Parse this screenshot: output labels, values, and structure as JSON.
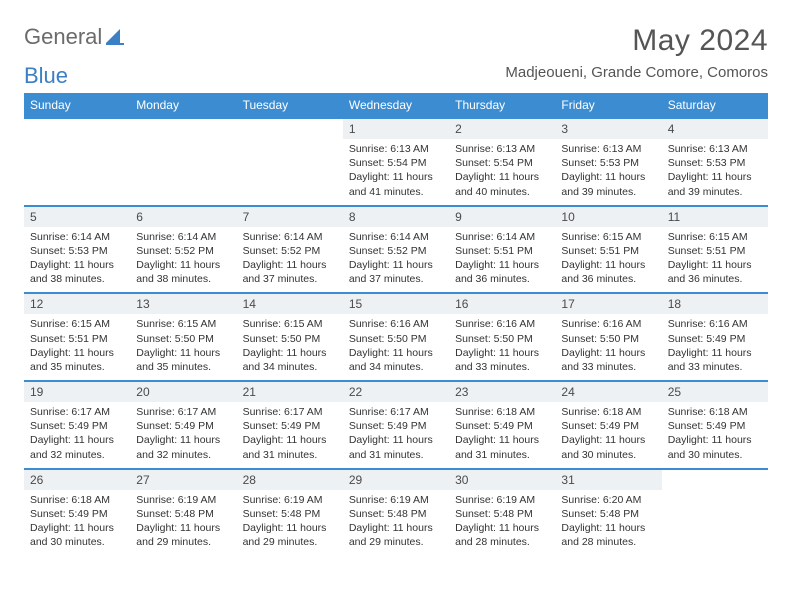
{
  "logo": {
    "word1": "General",
    "word2": "Blue"
  },
  "title": "May 2024",
  "location": "Madjeoueni, Grande Comore, Comoros",
  "colors": {
    "header_bg": "#3c8cd2",
    "header_text": "#ffffff",
    "row_border": "#3c8cd2",
    "daynum_bg": "#eef1f3",
    "logo_gray": "#6b6b6b",
    "logo_blue": "#3b7fc4",
    "text": "#333333"
  },
  "day_headers": [
    "Sunday",
    "Monday",
    "Tuesday",
    "Wednesday",
    "Thursday",
    "Friday",
    "Saturday"
  ],
  "weeks": [
    [
      null,
      null,
      null,
      {
        "n": "1",
        "sr": "6:13 AM",
        "ss": "5:54 PM",
        "dl": "11 hours and 41 minutes."
      },
      {
        "n": "2",
        "sr": "6:13 AM",
        "ss": "5:54 PM",
        "dl": "11 hours and 40 minutes."
      },
      {
        "n": "3",
        "sr": "6:13 AM",
        "ss": "5:53 PM",
        "dl": "11 hours and 39 minutes."
      },
      {
        "n": "4",
        "sr": "6:13 AM",
        "ss": "5:53 PM",
        "dl": "11 hours and 39 minutes."
      }
    ],
    [
      {
        "n": "5",
        "sr": "6:14 AM",
        "ss": "5:53 PM",
        "dl": "11 hours and 38 minutes."
      },
      {
        "n": "6",
        "sr": "6:14 AM",
        "ss": "5:52 PM",
        "dl": "11 hours and 38 minutes."
      },
      {
        "n": "7",
        "sr": "6:14 AM",
        "ss": "5:52 PM",
        "dl": "11 hours and 37 minutes."
      },
      {
        "n": "8",
        "sr": "6:14 AM",
        "ss": "5:52 PM",
        "dl": "11 hours and 37 minutes."
      },
      {
        "n": "9",
        "sr": "6:14 AM",
        "ss": "5:51 PM",
        "dl": "11 hours and 36 minutes."
      },
      {
        "n": "10",
        "sr": "6:15 AM",
        "ss": "5:51 PM",
        "dl": "11 hours and 36 minutes."
      },
      {
        "n": "11",
        "sr": "6:15 AM",
        "ss": "5:51 PM",
        "dl": "11 hours and 36 minutes."
      }
    ],
    [
      {
        "n": "12",
        "sr": "6:15 AM",
        "ss": "5:51 PM",
        "dl": "11 hours and 35 minutes."
      },
      {
        "n": "13",
        "sr": "6:15 AM",
        "ss": "5:50 PM",
        "dl": "11 hours and 35 minutes."
      },
      {
        "n": "14",
        "sr": "6:15 AM",
        "ss": "5:50 PM",
        "dl": "11 hours and 34 minutes."
      },
      {
        "n": "15",
        "sr": "6:16 AM",
        "ss": "5:50 PM",
        "dl": "11 hours and 34 minutes."
      },
      {
        "n": "16",
        "sr": "6:16 AM",
        "ss": "5:50 PM",
        "dl": "11 hours and 33 minutes."
      },
      {
        "n": "17",
        "sr": "6:16 AM",
        "ss": "5:50 PM",
        "dl": "11 hours and 33 minutes."
      },
      {
        "n": "18",
        "sr": "6:16 AM",
        "ss": "5:49 PM",
        "dl": "11 hours and 33 minutes."
      }
    ],
    [
      {
        "n": "19",
        "sr": "6:17 AM",
        "ss": "5:49 PM",
        "dl": "11 hours and 32 minutes."
      },
      {
        "n": "20",
        "sr": "6:17 AM",
        "ss": "5:49 PM",
        "dl": "11 hours and 32 minutes."
      },
      {
        "n": "21",
        "sr": "6:17 AM",
        "ss": "5:49 PM",
        "dl": "11 hours and 31 minutes."
      },
      {
        "n": "22",
        "sr": "6:17 AM",
        "ss": "5:49 PM",
        "dl": "11 hours and 31 minutes."
      },
      {
        "n": "23",
        "sr": "6:18 AM",
        "ss": "5:49 PM",
        "dl": "11 hours and 31 minutes."
      },
      {
        "n": "24",
        "sr": "6:18 AM",
        "ss": "5:49 PM",
        "dl": "11 hours and 30 minutes."
      },
      {
        "n": "25",
        "sr": "6:18 AM",
        "ss": "5:49 PM",
        "dl": "11 hours and 30 minutes."
      }
    ],
    [
      {
        "n": "26",
        "sr": "6:18 AM",
        "ss": "5:49 PM",
        "dl": "11 hours and 30 minutes."
      },
      {
        "n": "27",
        "sr": "6:19 AM",
        "ss": "5:48 PM",
        "dl": "11 hours and 29 minutes."
      },
      {
        "n": "28",
        "sr": "6:19 AM",
        "ss": "5:48 PM",
        "dl": "11 hours and 29 minutes."
      },
      {
        "n": "29",
        "sr": "6:19 AM",
        "ss": "5:48 PM",
        "dl": "11 hours and 29 minutes."
      },
      {
        "n": "30",
        "sr": "6:19 AM",
        "ss": "5:48 PM",
        "dl": "11 hours and 28 minutes."
      },
      {
        "n": "31",
        "sr": "6:20 AM",
        "ss": "5:48 PM",
        "dl": "11 hours and 28 minutes."
      },
      null
    ]
  ],
  "labels": {
    "sunrise": "Sunrise: ",
    "sunset": "Sunset: ",
    "daylight": "Daylight: "
  }
}
